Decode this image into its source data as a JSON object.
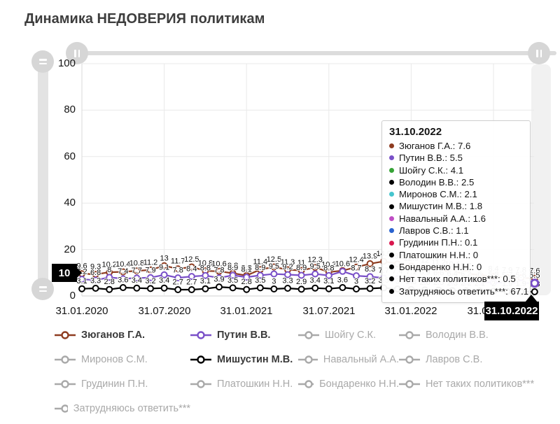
{
  "page": {
    "title": "Динамика НЕДОВЕРИЯ политикам"
  },
  "y_axis": {
    "ticks": [
      "100",
      "80",
      "60",
      "40",
      "20",
      "0"
    ],
    "pointer_label": "10"
  },
  "x_axis": {
    "pointer_label": "31.10.2022"
  },
  "tooltip": {
    "date": "31.10.2022",
    "items": [
      {
        "name": "Зюганов Г.А.",
        "value": "7.6",
        "color": "#8e3c20"
      },
      {
        "name": "Путин В.В.",
        "value": "5.5",
        "color": "#7a50c8"
      },
      {
        "name": "Шойгу С.К.",
        "value": "4.1",
        "color": "#36a336"
      },
      {
        "name": "Володин В.В.",
        "value": "2.5",
        "color": "#000000"
      },
      {
        "name": "Миронов С.М.",
        "value": "2.1",
        "color": "#46c5ce"
      },
      {
        "name": "Мишустин М.В.",
        "value": "1.8",
        "color": "#000000"
      },
      {
        "name": "Навальный А.А.",
        "value": "1.6",
        "color": "#bf4ec4"
      },
      {
        "name": "Лавров С.В.",
        "value": "1.1",
        "color": "#2a63cf"
      },
      {
        "name": "Грудинин П.Н.",
        "value": "0.1",
        "color": "#d9174e"
      },
      {
        "name": "Платошкин Н.Н.",
        "value": "0",
        "color": "#000000"
      },
      {
        "name": "Бондаренко Н.Н.",
        "value": "0",
        "color": "#000000"
      },
      {
        "name": "Нет таких политиков***",
        "value": "0.5",
        "color": "#000000"
      },
      {
        "name": "Затрудняюсь ответить***",
        "value": "67.1",
        "color": "#000000"
      }
    ]
  },
  "legend": {
    "items": [
      {
        "label": "Зюганов Г.А.",
        "color": "#8e3c20",
        "active": true
      },
      {
        "label": "Путин В.В.",
        "color": "#7a50c8",
        "active": true
      },
      {
        "label": "Шойгу С.К.",
        "color": "#a9a9a9",
        "active": false
      },
      {
        "label": "Володин В.В.",
        "color": "#a9a9a9",
        "active": false
      },
      {
        "label": "Миронов С.М.",
        "color": "#a9a9a9",
        "active": false
      },
      {
        "label": "Мишустин М.В.",
        "color": "#000000",
        "active": true
      },
      {
        "label": "Навальный А.А.",
        "color": "#a9a9a9",
        "active": false
      },
      {
        "label": "Лавров С.В.",
        "color": "#a9a9a9",
        "active": false
      },
      {
        "label": "Грудинин П.Н.",
        "color": "#a9a9a9",
        "active": false
      },
      {
        "label": "Платошкин Н.Н.",
        "color": "#a9a9a9",
        "active": false
      },
      {
        "label": "Бондаренко Н.Н.",
        "color": "#a9a9a9",
        "active": false
      },
      {
        "label": "Нет таких политиков***",
        "color": "#a9a9a9",
        "active": false
      },
      {
        "label": "Затрудняюсь ответить***",
        "color": "#a9a9a9",
        "active": false
      }
    ]
  },
  "chart_data": {
    "type": "line",
    "title": "Динамика НЕДОВЕРИЯ политикам",
    "xlabel": "",
    "ylabel": "",
    "ylim": [
      0,
      100
    ],
    "grid": true,
    "legend_position": "bottom",
    "y_ticks": [
      0,
      20,
      40,
      60,
      80,
      100
    ],
    "x_tick_labels": [
      "31.01.2020",
      "31.07.2020",
      "31.01.2021",
      "31.07.2021",
      "31.01.2022",
      "31.07.2022"
    ],
    "x_tick_month_index": [
      0,
      6,
      12,
      18,
      24,
      30
    ],
    "n_points": 34,
    "x_range": [
      "31.01.2020",
      "31.10.2022"
    ],
    "hovered_x": "31.10.2022",
    "hovered_y_axis_value": 10,
    "series": [
      {
        "name": "Зюганов Г.А.",
        "color": "#8e3c20",
        "values": [
          9.6,
          9.3,
          10.2,
          10.4,
          10.8,
          11.2,
          13,
          11.7,
          12.5,
          10.8,
          10.6,
          9.8,
          8.8,
          11.4,
          12.5,
          11.3,
          11,
          12.3,
          10.3,
          10.9,
          12.4,
          13.9,
          14.9,
          13.8,
          12.9,
          12,
          11.2,
          10.4,
          9.7,
          9,
          8.4,
          7.9,
          7.8,
          7.6
        ]
      },
      {
        "name": "Путин В.В.",
        "color": "#7a50c8",
        "values": [
          7.2,
          6.8,
          8,
          7.4,
          7.7,
          7.9,
          9.1,
          7.8,
          8.4,
          8.8,
          7.8,
          8.9,
          8.1,
          8.9,
          9.5,
          9.2,
          8.9,
          9.5,
          8.8,
          10.6,
          8.7,
          8.3,
          7.7,
          7.4,
          7.1,
          6.9,
          6.6,
          6.4,
          6.2,
          6,
          5.8,
          5.7,
          5.6,
          5.5
        ]
      },
      {
        "name": "Мишустин М.В.",
        "color": "#000000",
        "values": [
          3.1,
          3.3,
          2.8,
          3.6,
          3.4,
          3.2,
          3.4,
          2.7,
          2.7,
          3.1,
          3.9,
          3.5,
          2.8,
          3.5,
          3,
          3.3,
          2.9,
          3.4,
          3.1,
          3.6,
          3,
          3.2,
          3.5,
          3,
          2.8,
          2.6,
          2.5,
          2.3,
          2.2,
          2.1,
          2,
          1.9,
          1.9,
          1.8
        ]
      }
    ],
    "series_not_plotted": [
      "Шойгу С.К.",
      "Володин В.В.",
      "Миронов С.М.",
      "Навальный А.А.",
      "Лавров С.В.",
      "Грудинин П.Н.",
      "Платошкин Н.Н.",
      "Бондаренко Н.Н.",
      "Нет таких политиков***",
      "Затрудняюсь ответить***"
    ]
  }
}
